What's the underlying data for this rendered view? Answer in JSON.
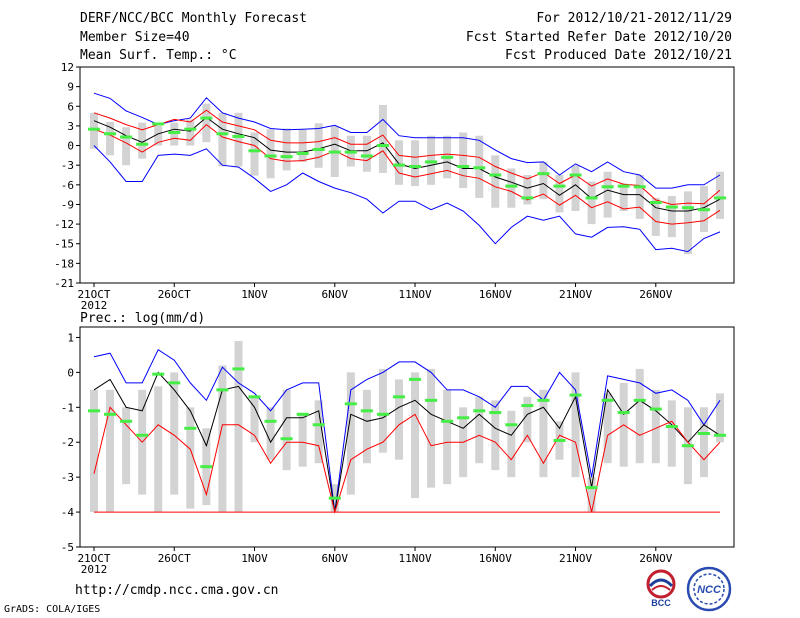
{
  "header": {
    "left": [
      "DERF/NCC/BCC Monthly Forecast",
      "Member Size=40",
      "Mean Surf. Temp.: °C"
    ],
    "right": [
      "For 2012/10/21-2012/11/29",
      "Fcst Started Refer Date 2012/10/20",
      "Fcst Produced Date 2012/10/21"
    ]
  },
  "footer": {
    "url": "http://cmdp.ncc.cma.gov.cn",
    "credit": "GrADS: COLA/IGES"
  },
  "logos": {
    "bcc": "BCC",
    "ncc": "NCC"
  },
  "chart_data": [
    {
      "type": "line",
      "title": "Mean Surf. Temp.: °C",
      "xlabel": "",
      "ylabel": "",
      "x_ticks": [
        "21OCT",
        "26OCT",
        "1NOV",
        "6NOV",
        "11NOV",
        "16NOV",
        "21NOV",
        "26NOV"
      ],
      "x_tick_days": [
        1,
        6,
        11,
        16,
        21,
        26,
        31,
        36
      ],
      "x_year_label": "2012",
      "ylim": [
        -21,
        12
      ],
      "y_ticks": [
        -21,
        -18,
        -15,
        -12,
        -9,
        -6,
        -3,
        0,
        3,
        6,
        9,
        12
      ],
      "days": 40,
      "series": [
        {
          "name": "ensemble max",
          "color": "#0000ff",
          "values": [
            8,
            7.2,
            5.3,
            4.3,
            3.2,
            3.8,
            4.2,
            7.3,
            5,
            4.2,
            3.6,
            2.6,
            2.4,
            2.5,
            2.6,
            3.1,
            2,
            2,
            4,
            1.5,
            1.2,
            1.2,
            1.2,
            1.2,
            0.8,
            -0.7,
            -2,
            -2.6,
            -2.5,
            -4.5,
            -2.8,
            -4,
            -2.5,
            -4,
            -4.5,
            -6.5,
            -6.5,
            -6,
            -6,
            -4.5
          ]
        },
        {
          "name": "upper spread",
          "color": "#ff0000",
          "values": [
            5,
            4.2,
            3.2,
            2.4,
            3.2,
            4,
            3.6,
            5.4,
            3.6,
            3,
            2.4,
            0.8,
            0.4,
            0.4,
            0.6,
            1.2,
            0.2,
            0.2,
            1.6,
            -1.5,
            -1.8,
            -1.5,
            -1.3,
            -1.5,
            -1.8,
            -3.2,
            -4.2,
            -5.1,
            -4.1,
            -5.8,
            -4.5,
            -6.2,
            -5.1,
            -5.9,
            -6.1,
            -8.3,
            -9,
            -8.8,
            -8.9,
            -6.8
          ]
        },
        {
          "name": "ensemble mean",
          "color": "#000000",
          "values": [
            3.8,
            2.8,
            1.5,
            0.5,
            1.8,
            2.5,
            2.2,
            4.3,
            2.5,
            1.8,
            1.2,
            -0.7,
            -1,
            -1,
            -0.5,
            0.2,
            -0.8,
            -0.8,
            0.4,
            -2.8,
            -3.5,
            -3,
            -2.5,
            -3.5,
            -3.5,
            -4.8,
            -5.6,
            -6.5,
            -5.8,
            -7.6,
            -6,
            -8.1,
            -6.8,
            -7.5,
            -7.5,
            -9.5,
            -10,
            -10,
            -9.5,
            -8.2
          ]
        },
        {
          "name": "lower spread",
          "color": "#ff0000",
          "values": [
            2.5,
            1.6,
            0.4,
            -1,
            0.5,
            1.1,
            0.8,
            3.2,
            1.3,
            0.6,
            0,
            -2,
            -2.4,
            -2.3,
            -1.8,
            -0.8,
            -2,
            -2.3,
            -0.8,
            -4.2,
            -4.8,
            -4.3,
            -3.8,
            -4.6,
            -5,
            -6.3,
            -7,
            -8.3,
            -7.4,
            -9.1,
            -7.6,
            -9.5,
            -8.6,
            -9.7,
            -9.4,
            -11.6,
            -12,
            -11.8,
            -11.5,
            -9.9
          ]
        },
        {
          "name": "ensemble min",
          "color": "#0000ff",
          "values": [
            0,
            -2.5,
            -5.5,
            -5.5,
            -1.5,
            -1.3,
            -1.5,
            -0.5,
            -3,
            -3.3,
            -5,
            -7,
            -6,
            -4.2,
            -5.5,
            -6.5,
            -7.2,
            -8.2,
            -10.3,
            -8.5,
            -8.5,
            -9.8,
            -8.8,
            -10,
            -12.2,
            -15,
            -12.5,
            -10.8,
            -11.4,
            -10.8,
            -13.5,
            -14,
            -12.5,
            -12.4,
            -12.8,
            -15.9,
            -15.7,
            -16.2,
            -14.2,
            -13.2
          ]
        },
        {
          "name": "observation/median",
          "color": "#44ee44",
          "values": [
            2.5,
            1.8,
            1.3,
            0.2,
            3.3,
            2,
            2.5,
            4.2,
            1.8,
            1.4,
            -0.8,
            -1.6,
            -1.7,
            -1.2,
            -0.6,
            -1,
            -1,
            -1.6,
            0,
            -3,
            -3.2,
            -2.5,
            -1.8,
            -3.2,
            -3.4,
            -4.5,
            -6.2,
            -8,
            -4.3,
            -6.2,
            -4.5,
            -8,
            -6.3,
            -6.2,
            -6.3,
            -8.7,
            -9.4,
            -9.5,
            -9.8,
            -8
          ]
        }
      ],
      "boxes": {
        "name": "ensemble spread box",
        "color": "#d3d3d3",
        "high": [
          5,
          3.6,
          2.8,
          3.5,
          3,
          3.5,
          4,
          6.4,
          5,
          5,
          2,
          2.5,
          2.6,
          2.4,
          3.4,
          3,
          1.5,
          1.5,
          6.2,
          0.8,
          0.8,
          1.5,
          1.5,
          2,
          1.5,
          -1.5,
          -3.5,
          -4.5,
          -2.5,
          -4.5,
          -3,
          -5.5,
          -4,
          -5.8,
          -4.5,
          -8,
          -7.7,
          -7,
          -6.2,
          -4
        ],
        "low": [
          -0.5,
          -1.5,
          -3,
          -2,
          0,
          0,
          0,
          0.5,
          -3.2,
          -3.2,
          -4.6,
          -5,
          -3.8,
          -2.5,
          -3.4,
          -4.8,
          -3.2,
          -4,
          -4.2,
          -6,
          -6.2,
          -6,
          -5,
          -6.5,
          -8,
          -9.5,
          -9.5,
          -9,
          -8.2,
          -10.2,
          -10,
          -12,
          -11,
          -10,
          -11.2,
          -13.8,
          -14,
          -16.6,
          -13.2,
          -11.2
        ]
      }
    },
    {
      "type": "line",
      "title": "Prec.: log(mm/d)",
      "xlabel": "",
      "ylabel": "",
      "x_ticks": [
        "21OCT",
        "26OCT",
        "1NOV",
        "6NOV",
        "11NOV",
        "16NOV",
        "21NOV",
        "26NOV"
      ],
      "x_tick_days": [
        1,
        6,
        11,
        16,
        21,
        26,
        31,
        36
      ],
      "x_year_label": "2012",
      "ylim": [
        -5,
        1.3
      ],
      "y_ticks": [
        -5,
        -4,
        -3,
        -2,
        -1,
        0,
        1
      ],
      "days": 40,
      "series": [
        {
          "name": "ensemble max",
          "color": "#0000ff",
          "values": [
            0.45,
            0.55,
            -0.3,
            -0.3,
            0.65,
            0.35,
            -0.3,
            -0.8,
            0.15,
            -0.3,
            -0.6,
            -1.1,
            -0.5,
            -0.3,
            -0.3,
            -4,
            -0.5,
            -0.2,
            0,
            0.3,
            0.3,
            0,
            -0.5,
            -0.5,
            -0.7,
            -1,
            -0.4,
            -0.4,
            -0.8,
            0,
            -0.5,
            -3,
            -0.1,
            -0.2,
            -0.3,
            -0.6,
            -0.5,
            -0.8,
            -1.5,
            -0.8
          ]
        },
        {
          "name": "mid-upper",
          "color": "#000000",
          "values": [
            -0.5,
            -0.2,
            -1,
            -1.1,
            0,
            -0.5,
            -1.1,
            -2.1,
            -0.5,
            -0.4,
            -1,
            -2,
            -1.3,
            -1.3,
            -1.1,
            -4,
            -1.2,
            -1.4,
            -1.3,
            -1,
            -0.8,
            -1.2,
            -1.4,
            -1.6,
            -1.2,
            -1.6,
            -1.8,
            -1.2,
            -1,
            -1.6,
            -0.7,
            -3.3,
            -0.5,
            -1.2,
            -0.8,
            -1.1,
            -1.5,
            -2,
            -1.5,
            -1.8
          ]
        },
        {
          "name": "lower spread",
          "color": "#ff0000",
          "values": [
            -2.9,
            -1,
            -1.5,
            -2,
            -1.5,
            -1.8,
            -2.2,
            -3.5,
            -1.5,
            -1.5,
            -1.8,
            -2.6,
            -2,
            -2,
            -2.1,
            -4,
            -2.5,
            -2.2,
            -2,
            -1.5,
            -1.2,
            -2.1,
            -2,
            -2,
            -1.8,
            -2,
            -2.5,
            -1.8,
            -2.6,
            -1.8,
            -2,
            -4,
            -1.8,
            -1.5,
            -1.8,
            -1.6,
            -1.4,
            -2,
            -2.5,
            -2
          ]
        },
        {
          "name": "ensemble min",
          "color": "#ff0000",
          "values": [
            -4,
            -4,
            -4,
            -4,
            -4,
            -4,
            -4,
            -4,
            -4,
            -4,
            -4,
            -4,
            -4,
            -4,
            -4,
            -4,
            -4,
            -4,
            -4,
            -4,
            -4,
            -4,
            -4,
            -4,
            -4,
            -4,
            -4,
            -4,
            -4,
            -4,
            -4,
            -4,
            -4,
            -4,
            -4,
            -4,
            -4,
            -4,
            -4,
            -4
          ]
        },
        {
          "name": "ensemble mean",
          "color": "#44ee44",
          "values": [
            -1.1,
            -1.2,
            -1.4,
            -1.8,
            -0.05,
            -0.3,
            -1.6,
            -2.7,
            -0.5,
            0.1,
            -0.7,
            -1.4,
            -1.9,
            -1.2,
            -1.5,
            -3.6,
            -0.9,
            -1.1,
            -1.2,
            -0.7,
            -0.2,
            -0.8,
            -1.4,
            -1.3,
            -1.1,
            -1.15,
            -1.5,
            -0.95,
            -0.8,
            -1.95,
            -0.65,
            -3.3,
            -0.8,
            -1.15,
            -0.8,
            -1.05,
            -1.55,
            -2.1,
            -1.75,
            -1.8
          ]
        }
      ],
      "boxes": {
        "name": "ensemble spread box",
        "color": "#d3d3d3",
        "high": [
          -0.5,
          -0.5,
          -1,
          -0.5,
          -0.4,
          0,
          -1,
          -1.6,
          0.2,
          0.9,
          -0.7,
          -1,
          -0.5,
          -1.2,
          -0.8,
          -3.2,
          0,
          -0.5,
          0.1,
          -0.2,
          0,
          0.1,
          -0.5,
          -1,
          -0.7,
          -0.8,
          -1.1,
          -0.7,
          -0.5,
          -1.4,
          0,
          -3,
          -0.6,
          -0.3,
          0.1,
          -0.5,
          -0.8,
          -1,
          -1,
          -0.6
        ],
        "low": [
          -4,
          -4,
          -3.2,
          -3.5,
          -4,
          -3.5,
          -3.9,
          -3.8,
          -4,
          -4,
          -2,
          -2.5,
          -2.8,
          -2.7,
          -2.6,
          -4,
          -3.5,
          -2.6,
          -2.3,
          -2.5,
          -3.6,
          -3.3,
          -3.2,
          -3,
          -2.6,
          -2.8,
          -3,
          -2,
          -3,
          -2.5,
          -3,
          -4,
          -2.6,
          -2.7,
          -2.6,
          -2.6,
          -2.7,
          -3.2,
          -3,
          -2
        ]
      }
    }
  ]
}
